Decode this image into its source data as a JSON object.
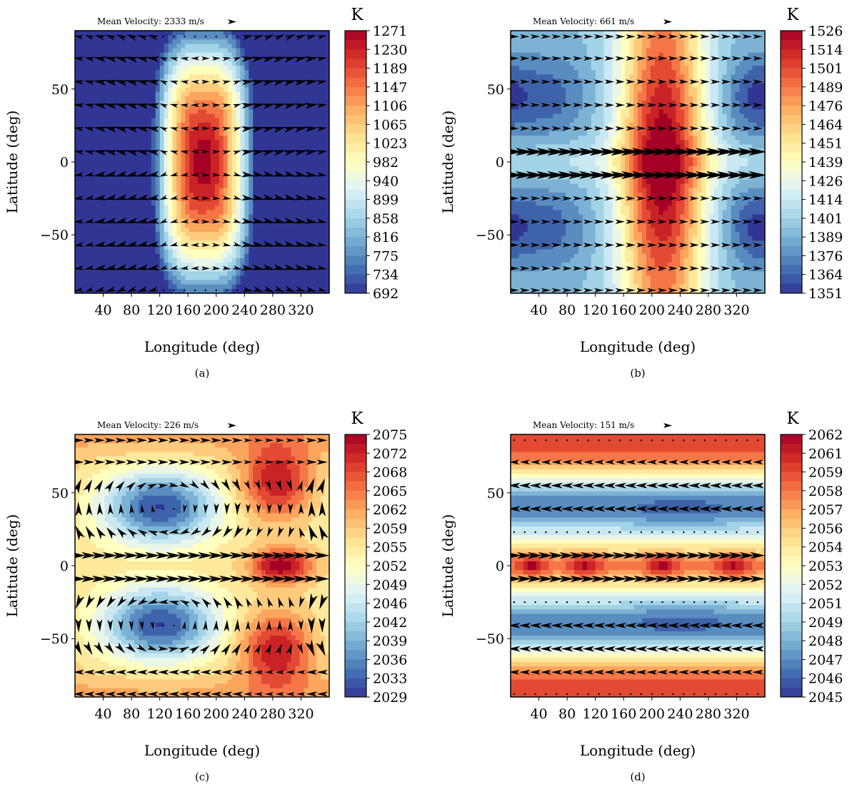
{
  "figure": {
    "panels": [
      {
        "id": "a",
        "caption": "(a)",
        "mean_velocity_label": "Mean Velocity: 2333 m/s",
        "unit_label": "K",
        "pattern": "dayside-hotspot",
        "hot_center_lon": 180,
        "arrow_style": "divergent"
      },
      {
        "id": "b",
        "caption": "(b)",
        "mean_velocity_label": "Mean Velocity: 661 m/s",
        "unit_label": "K",
        "pattern": "shifted-hotspot",
        "hot_center_lon": 210,
        "arrow_style": "superrotating-jet"
      },
      {
        "id": "c",
        "caption": "(c)",
        "mean_velocity_label": "Mean Velocity: 226 m/s",
        "unit_label": "K",
        "pattern": "gyres",
        "hot_center_lon": 285,
        "arrow_style": "gyres"
      },
      {
        "id": "d",
        "caption": "(d)",
        "mean_velocity_label": "Mean Velocity: 151 m/s",
        "unit_label": "K",
        "pattern": "zonal-bands",
        "hot_center_lon": 0,
        "arrow_style": "zonal"
      }
    ]
  },
  "chart_data": [
    {
      "type": "heatmap",
      "panel": "a",
      "xlabel": "Longitude (deg)",
      "ylabel": "Latitude (deg)",
      "xlim": [
        0,
        360
      ],
      "ylim": [
        -90,
        90
      ],
      "xticks": [
        40,
        80,
        120,
        160,
        200,
        240,
        280,
        320
      ],
      "yticks": [
        -50,
        0,
        50
      ],
      "colorbar_label": "K",
      "colorbar_ticks": [
        1271,
        1230,
        1189,
        1147,
        1106,
        1065,
        1023,
        982,
        940,
        899,
        858,
        816,
        775,
        734,
        692
      ],
      "vmin": 692,
      "vmax": 1271
    },
    {
      "type": "heatmap",
      "panel": "b",
      "xlabel": "Longitude (deg)",
      "ylabel": "Latitude (deg)",
      "xlim": [
        0,
        360
      ],
      "ylim": [
        -90,
        90
      ],
      "xticks": [
        40,
        80,
        120,
        160,
        200,
        240,
        280,
        320
      ],
      "yticks": [
        -50,
        0,
        50
      ],
      "colorbar_label": "K",
      "colorbar_ticks": [
        1526,
        1514,
        1501,
        1489,
        1476,
        1464,
        1451,
        1439,
        1426,
        1414,
        1401,
        1389,
        1376,
        1364,
        1351
      ],
      "vmin": 1351,
      "vmax": 1526
    },
    {
      "type": "heatmap",
      "panel": "c",
      "xlabel": "Longitude (deg)",
      "ylabel": "Latitude (deg)",
      "xlim": [
        0,
        360
      ],
      "ylim": [
        -90,
        90
      ],
      "xticks": [
        40,
        80,
        120,
        160,
        200,
        240,
        280,
        320
      ],
      "yticks": [
        -50,
        0,
        50
      ],
      "colorbar_label": "K",
      "colorbar_ticks": [
        2075,
        2072,
        2068,
        2065,
        2062,
        2059,
        2055,
        2052,
        2049,
        2046,
        2042,
        2039,
        2036,
        2033,
        2029
      ],
      "vmin": 2029,
      "vmax": 2075
    },
    {
      "type": "heatmap",
      "panel": "d",
      "xlabel": "Longitude (deg)",
      "ylabel": "Latitude (deg)",
      "xlim": [
        0,
        360
      ],
      "ylim": [
        -90,
        90
      ],
      "xticks": [
        40,
        80,
        120,
        160,
        200,
        240,
        280,
        320
      ],
      "yticks": [
        -50,
        0,
        50
      ],
      "colorbar_label": "K",
      "colorbar_ticks": [
        2062,
        2061,
        2059,
        2058,
        2057,
        2056,
        2054,
        2053,
        2052,
        2051,
        2049,
        2048,
        2047,
        2046,
        2045
      ],
      "vmin": 2045,
      "vmax": 2062
    }
  ],
  "colors": {
    "colormap": [
      "#313695",
      "#4575b4",
      "#74add1",
      "#abd9e9",
      "#e0f3f8",
      "#ffffbf",
      "#fee090",
      "#fdae61",
      "#f46d43",
      "#d73027",
      "#a50026"
    ],
    "arrow": "#000000",
    "frame": "#000000"
  }
}
